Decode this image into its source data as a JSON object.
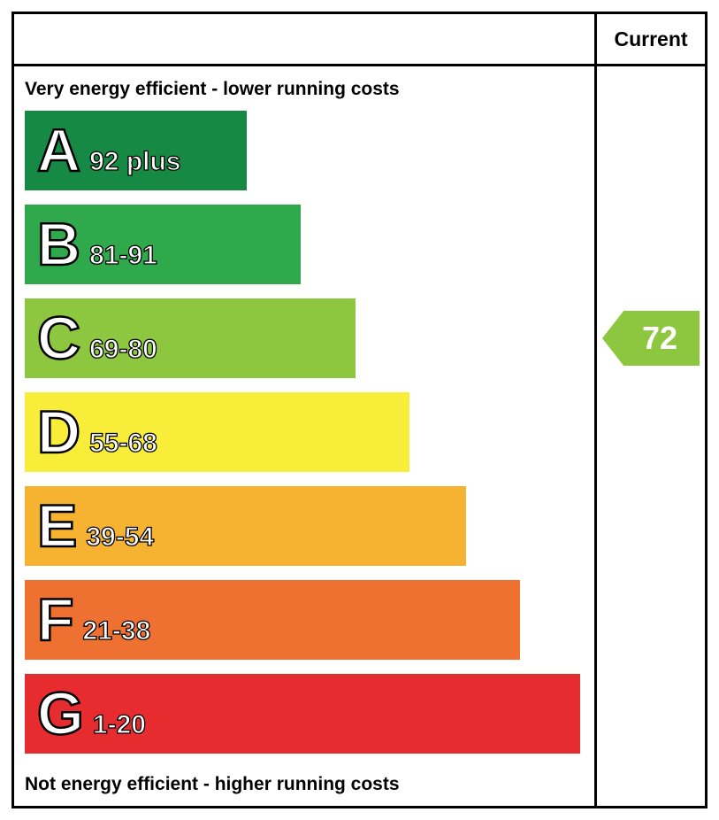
{
  "header": {
    "current_label": "Current"
  },
  "labels": {
    "top": "Very energy efficient - lower running costs",
    "bottom": "Not energy efficient - higher running costs"
  },
  "chart_data": {
    "type": "bar",
    "title": "Energy efficiency rating chart (EPC)",
    "categories": [
      "A",
      "B",
      "C",
      "D",
      "E",
      "F",
      "G"
    ],
    "bands": [
      {
        "letter": "A",
        "range": "92 plus",
        "color": "#168a44",
        "width_pct": 39
      },
      {
        "letter": "B",
        "range": "81-91",
        "color": "#2fa94c",
        "width_pct": 48.5
      },
      {
        "letter": "C",
        "range": "69-80",
        "color": "#8dc63f",
        "width_pct": 58
      },
      {
        "letter": "D",
        "range": "55-68",
        "color": "#f8ee3a",
        "width_pct": 67.5
      },
      {
        "letter": "E",
        "range": "39-54",
        "color": "#f6b231",
        "width_pct": 77.5
      },
      {
        "letter": "F",
        "range": "21-38",
        "color": "#ee7132",
        "width_pct": 87
      },
      {
        "letter": "G",
        "range": "1-20",
        "color": "#e72c2f",
        "width_pct": 97.5
      }
    ],
    "current": {
      "value": "72",
      "band": "C",
      "color": "#8dc63f"
    }
  }
}
